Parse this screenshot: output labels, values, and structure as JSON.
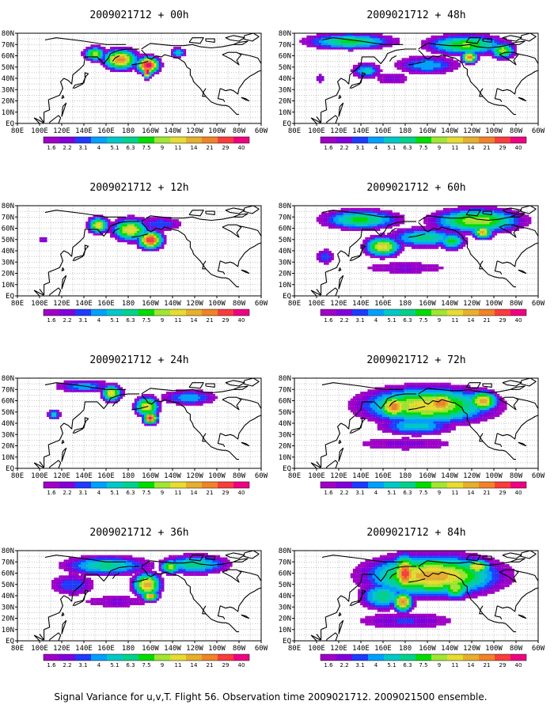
{
  "figure": {
    "caption": "Signal Variance for u,v,T. Flight 56. Observation time 2009021712. 2009021500 ensemble."
  },
  "colorbar": {
    "levels": [
      "1.6",
      "2.2",
      "3.1",
      "4",
      "5.1",
      "6.3",
      "7.5",
      "9",
      "11",
      "14",
      "21",
      "29",
      "40"
    ],
    "colors": [
      "#a000c8",
      "#8200dc",
      "#1e3cff",
      "#00a0ff",
      "#00c8c8",
      "#00d28c",
      "#00dc00",
      "#a0e632",
      "#e6dc32",
      "#e6af2d",
      "#f08228",
      "#fa3c3c",
      "#f00082"
    ]
  },
  "chart_data": [
    {
      "type": "heatmap",
      "title": "2009021712 + 00h",
      "x_ticks": [
        "80E",
        "100E",
        "120E",
        "140E",
        "160E",
        "180",
        "160W",
        "140W",
        "120W",
        "100W",
        "80W",
        "60W"
      ],
      "y_ticks": [
        "EQ",
        "10N",
        "20N",
        "30N",
        "40N",
        "50N",
        "60N",
        "70N",
        "80N"
      ],
      "xlim": [
        "80E",
        "60W"
      ],
      "ylim": [
        "EQ",
        "80N"
      ],
      "grid": true,
      "blobs": [
        [
          150,
          62,
          11,
          7,
          0.7
        ],
        [
          173,
          57,
          17,
          10,
          0.85
        ],
        [
          198,
          52,
          11,
          8,
          1.0
        ],
        [
          197,
          46,
          4,
          6,
          1.0
        ],
        [
          225,
          63,
          8,
          5,
          0.5
        ]
      ]
    },
    {
      "type": "heatmap",
      "title": "2009021712 + 48h",
      "x_ticks": [
        "80E",
        "100E",
        "120E",
        "140E",
        "160E",
        "180",
        "160W",
        "140W",
        "120W",
        "100W",
        "80W",
        "60W"
      ],
      "y_ticks": [
        "EQ",
        "10N",
        "20N",
        "30N",
        "40N",
        "50N",
        "60N",
        "70N",
        "80N"
      ],
      "xlim": [
        "80E",
        "60W"
      ],
      "ylim": [
        "EQ",
        "80N"
      ],
      "grid": true,
      "blobs": [
        [
          130,
          73,
          45,
          8,
          0.6
        ],
        [
          235,
          70,
          40,
          10,
          0.65
        ],
        [
          200,
          52,
          35,
          10,
          0.45
        ],
        [
          145,
          47,
          15,
          8,
          0.5
        ],
        [
          238,
          59,
          8,
          6,
          0.85
        ],
        [
          268,
          65,
          12,
          8,
          0.7
        ],
        [
          168,
          40,
          25,
          8,
          0.3
        ],
        [
          103,
          40,
          6,
          5,
          0.35
        ]
      ]
    },
    {
      "type": "heatmap",
      "title": "2009021712 + 12h",
      "x_ticks": [
        "80E",
        "100E",
        "120E",
        "140E",
        "160E",
        "180",
        "160W",
        "140W",
        "120W",
        "100W",
        "80W",
        "60W"
      ],
      "y_ticks": [
        "EQ",
        "10N",
        "20N",
        "30N",
        "40N",
        "50N",
        "60N",
        "70N",
        "80N"
      ],
      "xlim": [
        "80E",
        "60W"
      ],
      "ylim": [
        "EQ",
        "80N"
      ],
      "grid": true,
      "blobs": [
        [
          153,
          63,
          10,
          8,
          0.75
        ],
        [
          182,
          59,
          18,
          11,
          0.75
        ],
        [
          200,
          50,
          12,
          9,
          0.95
        ],
        [
          208,
          64,
          25,
          8,
          0.4
        ],
        [
          104,
          50,
          5,
          4,
          0.35
        ]
      ]
    },
    {
      "type": "heatmap",
      "title": "2009021712 + 60h",
      "x_ticks": [
        "80E",
        "100E",
        "120E",
        "140E",
        "160E",
        "180",
        "160W",
        "140W",
        "120W",
        "100W",
        "80W",
        "60W"
      ],
      "y_ticks": [
        "EQ",
        "10N",
        "20N",
        "30N",
        "40N",
        "50N",
        "60N",
        "70N",
        "80N"
      ],
      "xlim": [
        "80E",
        "60W"
      ],
      "ylim": [
        "EQ",
        "80N"
      ],
      "grid": true,
      "blobs": [
        [
          140,
          68,
          40,
          10,
          0.6
        ],
        [
          245,
          67,
          45,
          12,
          0.7
        ],
        [
          198,
          52,
          38,
          10,
          0.55
        ],
        [
          160,
          44,
          18,
          10,
          0.75
        ],
        [
          250,
          57,
          10,
          7,
          0.8
        ],
        [
          222,
          49,
          14,
          9,
          0.6
        ],
        [
          180,
          25,
          60,
          8,
          0.3
        ],
        [
          108,
          35,
          10,
          8,
          0.4
        ]
      ]
    },
    {
      "type": "heatmap",
      "title": "2009021712 + 24h",
      "x_ticks": [
        "80E",
        "100E",
        "120E",
        "140E",
        "160E",
        "180",
        "160W",
        "140W",
        "120W",
        "100W",
        "80W",
        "60W"
      ],
      "y_ticks": [
        "EQ",
        "10N",
        "20N",
        "30N",
        "40N",
        "50N",
        "60N",
        "70N",
        "80N"
      ],
      "xlim": [
        "80E",
        "60W"
      ],
      "ylim": [
        "EQ",
        "80N"
      ],
      "grid": true,
      "blobs": [
        [
          140,
          73,
          30,
          7,
          0.45
        ],
        [
          165,
          67,
          10,
          8,
          0.75
        ],
        [
          197,
          55,
          12,
          10,
          0.75
        ],
        [
          200,
          45,
          7,
          6,
          0.95
        ],
        [
          235,
          63,
          30,
          8,
          0.45
        ],
        [
          113,
          48,
          7,
          5,
          0.5
        ]
      ]
    },
    {
      "type": "heatmap",
      "title": "2009021712 + 72h",
      "x_ticks": [
        "80E",
        "100E",
        "120E",
        "140E",
        "160E",
        "180",
        "160W",
        "140W",
        "120W",
        "100W",
        "80W",
        "60W"
      ],
      "y_ticks": [
        "EQ",
        "10N",
        "20N",
        "30N",
        "40N",
        "50N",
        "60N",
        "70N",
        "80N"
      ],
      "xlim": [
        "80E",
        "60W"
      ],
      "ylim": [
        "EQ",
        "80N"
      ],
      "grid": true,
      "blobs": [
        [
          200,
          56,
          65,
          18,
          0.75
        ],
        [
          170,
          55,
          16,
          12,
          0.85
        ],
        [
          212,
          58,
          20,
          12,
          0.85
        ],
        [
          250,
          60,
          15,
          10,
          0.8
        ],
        [
          190,
          38,
          40,
          10,
          0.5
        ],
        [
          180,
          22,
          70,
          9,
          0.3
        ]
      ]
    },
    {
      "type": "heatmap",
      "title": "2009021712 + 36h",
      "x_ticks": [
        "80E",
        "100E",
        "120E",
        "140E",
        "160E",
        "180",
        "160W",
        "140W",
        "120W",
        "100W",
        "80W",
        "60W"
      ],
      "y_ticks": [
        "EQ",
        "10N",
        "20N",
        "30N",
        "40N",
        "50N",
        "60N",
        "70N",
        "80N"
      ],
      "xlim": [
        "80E",
        "60W"
      ],
      "ylim": [
        "EQ",
        "80N"
      ],
      "grid": true,
      "blobs": [
        [
          160,
          67,
          45,
          10,
          0.55
        ],
        [
          240,
          68,
          35,
          10,
          0.55
        ],
        [
          197,
          50,
          14,
          12,
          0.8
        ],
        [
          200,
          40,
          8,
          5,
          0.85
        ],
        [
          218,
          66,
          10,
          7,
          0.7
        ],
        [
          130,
          50,
          25,
          12,
          0.4
        ],
        [
          170,
          35,
          50,
          8,
          0.3
        ]
      ]
    },
    {
      "type": "heatmap",
      "title": "2009021712 + 84h",
      "x_ticks": [
        "80E",
        "100E",
        "120E",
        "140E",
        "160E",
        "180",
        "160W",
        "140W",
        "120W",
        "100W",
        "80W",
        "60W"
      ],
      "y_ticks": [
        "EQ",
        "10N",
        "20N",
        "30N",
        "40N",
        "50N",
        "60N",
        "70N",
        "80N"
      ],
      "xlim": [
        "80E",
        "60W"
      ],
      "ylim": [
        "EQ",
        "80N"
      ],
      "grid": true,
      "blobs": [
        [
          205,
          58,
          65,
          20,
          0.8
        ],
        [
          180,
          60,
          12,
          18,
          0.92
        ],
        [
          178,
          35,
          10,
          10,
          0.85
        ],
        [
          225,
          48,
          15,
          12,
          0.7
        ],
        [
          245,
          66,
          15,
          8,
          0.75
        ],
        [
          160,
          40,
          25,
          14,
          0.55
        ],
        [
          180,
          18,
          60,
          10,
          0.35
        ]
      ]
    }
  ]
}
